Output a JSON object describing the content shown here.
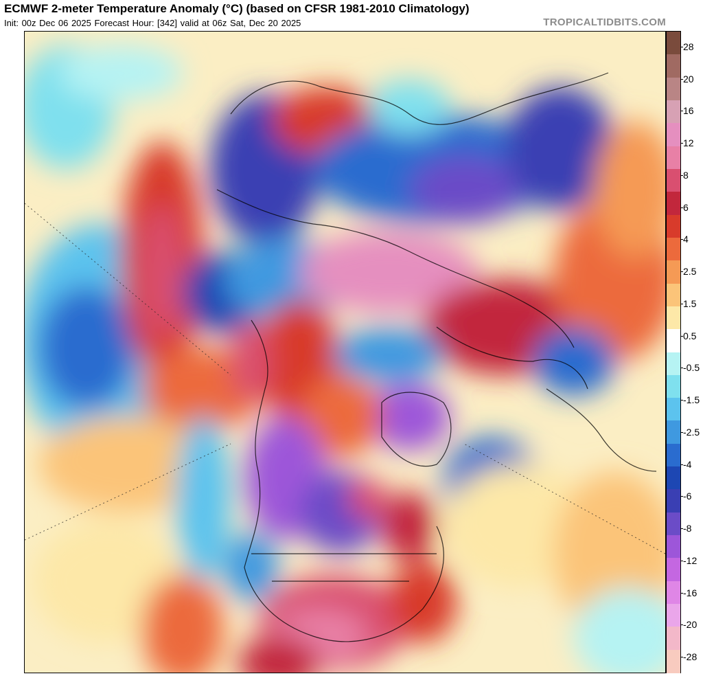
{
  "header": {
    "title": "ECMWF 2-meter Temperature Anomaly (°C) (based on CFSR 1981-2010 Climatology)",
    "subtitle": "Init: 00z Dec 06 2025   Forecast Hour: [342]   valid at 06z Sat, Dec 20 2025",
    "source": "TROPICALTIDBITS.COM"
  },
  "map": {
    "projection": "polar stereographic, Northern Hemisphere",
    "variable": "2-meter temperature anomaly",
    "units": "°C",
    "background_color": "#fbeec4"
  },
  "colorbar": {
    "labels": [
      "28",
      "20",
      "16",
      "12",
      "8",
      "6",
      "4",
      "2.5",
      "1.5",
      "0.5",
      "-0.5",
      "-1.5",
      "-2.5",
      "-4",
      "-6",
      "-8",
      "-12",
      "-16",
      "-20",
      "-28"
    ],
    "colors": [
      "#7a4b3c",
      "#a06a62",
      "#b98585",
      "#d7a1b4",
      "#e58fbf",
      "#e880a6",
      "#d94f70",
      "#c2273c",
      "#d83b2b",
      "#ec6a3c",
      "#f59a55",
      "#fbc479",
      "#fde8a8",
      "#ffffff",
      "#b6f3f3",
      "#7fe0ee",
      "#5cc3ee",
      "#3f99e0",
      "#2a6ccf",
      "#1d47b3",
      "#3a3fb3",
      "#6b4cc7",
      "#9d56d9",
      "#c467e1",
      "#df86e6",
      "#eaa6ea",
      "#f3b8c9",
      "#f8cbbf"
    ]
  }
}
